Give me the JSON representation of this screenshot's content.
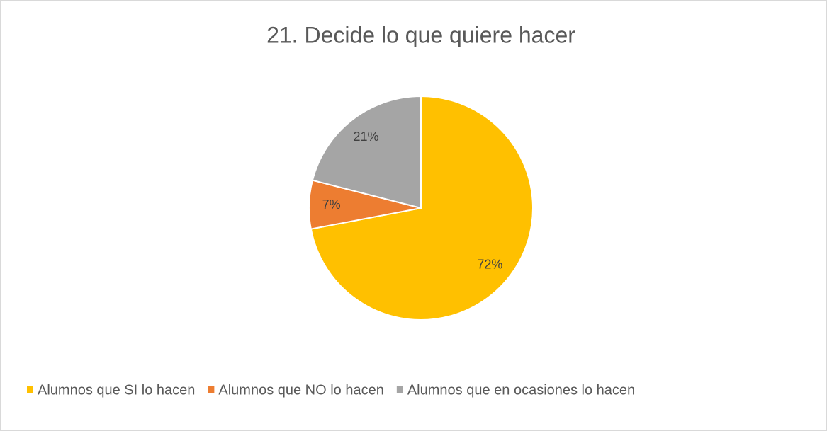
{
  "chart_data": {
    "type": "pie",
    "title": "21. Decide lo que quiere hacer",
    "categories": [
      "Alumnos que SI lo hacen",
      "Alumnos que NO lo hacen",
      "Alumnos que en ocasiones lo hacen"
    ],
    "values": [
      72,
      7,
      21
    ],
    "value_labels": [
      "72%",
      "7%",
      "21%"
    ],
    "colors": [
      "#FFC000",
      "#ED7D31",
      "#A5A5A5"
    ],
    "legend": "bottom"
  }
}
